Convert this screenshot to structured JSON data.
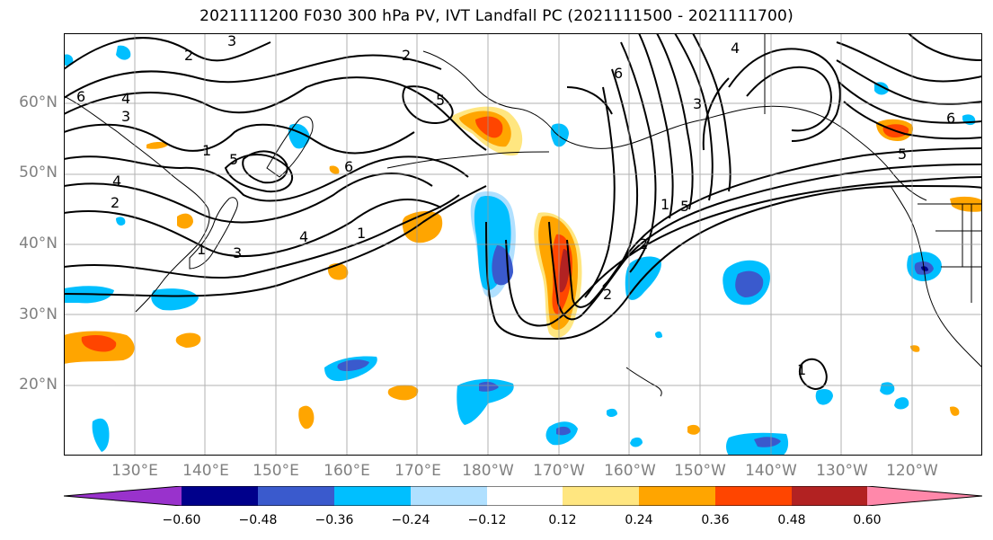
{
  "title": "2021111200 F030 300 hPa PV, IVT Landfall PC (2021111500 - 2021111700)",
  "map": {
    "lat_ticks": [
      "60°N",
      "50°N",
      "40°N",
      "30°N",
      "20°N"
    ],
    "lon_ticks": [
      "130°E",
      "140°E",
      "150°E",
      "160°E",
      "170°E",
      "180°W",
      "170°W",
      "160°W",
      "150°W",
      "140°W",
      "130°W",
      "120°W"
    ],
    "extent": {
      "lon_min": 120,
      "lon_max": 250,
      "lat_min": 10,
      "lat_max": 70
    },
    "contour_labels": [
      "2",
      "3",
      "6",
      "4",
      "1",
      "5",
      "2",
      "3",
      "6",
      "2",
      "4",
      "1",
      "5",
      "3",
      "4",
      "1",
      "2",
      "6",
      "1",
      "5",
      "2",
      "4",
      "3",
      "5",
      "6",
      "1"
    ]
  },
  "colorbar": {
    "tick_labels": [
      "−0.60",
      "−0.48",
      "−0.36",
      "−0.24",
      "−0.12",
      "0.12",
      "0.24",
      "0.36",
      "0.48",
      "0.60"
    ],
    "colors": [
      "#9932cc",
      "#00008b",
      "#3a5acd",
      "#00bfff",
      "#b0e0ff",
      "#ffffff",
      "#ffe680",
      "#ffa500",
      "#ff4500",
      "#b22222",
      "#ff88aa"
    ]
  }
}
